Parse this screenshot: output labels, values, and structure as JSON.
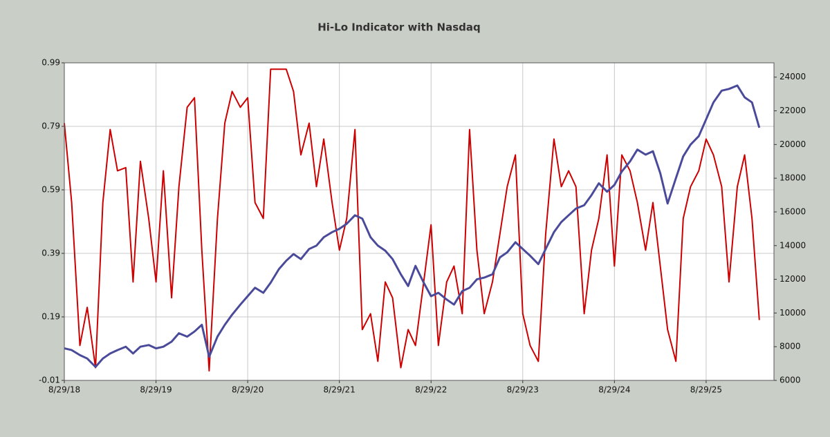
{
  "chart_data": {
    "type": "line",
    "title": "Hi-Lo Indicator with Nasdaq",
    "x": [
      2018.66,
      2018.74,
      2018.83,
      2018.91,
      2019.0,
      2019.08,
      2019.16,
      2019.24,
      2019.33,
      2019.41,
      2019.49,
      2019.58,
      2019.66,
      2019.74,
      2019.83,
      2019.91,
      2020.0,
      2020.08,
      2020.16,
      2020.24,
      2020.33,
      2020.41,
      2020.49,
      2020.58,
      2020.66,
      2020.74,
      2020.83,
      2020.91,
      2021.0,
      2021.08,
      2021.16,
      2021.24,
      2021.33,
      2021.41,
      2021.49,
      2021.58,
      2021.66,
      2021.74,
      2021.83,
      2021.91,
      2022.0,
      2022.08,
      2022.16,
      2022.24,
      2022.33,
      2022.41,
      2022.49,
      2022.58,
      2022.66,
      2022.74,
      2022.83,
      2022.91,
      2023.0,
      2023.08,
      2023.16,
      2023.24,
      2023.33,
      2023.41,
      2023.49,
      2023.58,
      2023.66,
      2023.74,
      2023.83,
      2023.91,
      2024.0,
      2024.08,
      2024.16,
      2024.24,
      2024.33,
      2024.41,
      2024.49,
      2024.58,
      2024.66,
      2024.74,
      2024.83,
      2024.91,
      2025.0,
      2025.08,
      2025.16,
      2025.24,
      2025.33,
      2025.41,
      2025.49,
      2025.58,
      2025.66,
      2025.74,
      2025.83,
      2025.91,
      2026.0,
      2026.08,
      2026.16,
      2026.24
    ],
    "series": [
      {
        "name": "Hi-Lo Indicator",
        "color": "#cc0000",
        "values": [
          0.8,
          0.55,
          0.1,
          0.22,
          0.03,
          0.55,
          0.78,
          0.65,
          0.66,
          0.3,
          0.68,
          0.5,
          0.3,
          0.65,
          0.25,
          0.6,
          0.85,
          0.88,
          0.4,
          0.02,
          0.5,
          0.8,
          0.9,
          0.85,
          0.88,
          0.55,
          0.5,
          0.97,
          0.97,
          0.97,
          0.9,
          0.7,
          0.8,
          0.6,
          0.75,
          0.55,
          0.4,
          0.5,
          0.78,
          0.15,
          0.2,
          0.05,
          0.3,
          0.25,
          0.03,
          0.15,
          0.1,
          0.3,
          0.48,
          0.1,
          0.3,
          0.35,
          0.2,
          0.78,
          0.4,
          0.2,
          0.3,
          0.45,
          0.6,
          0.7,
          0.2,
          0.1,
          0.05,
          0.45,
          0.75,
          0.6,
          0.65,
          0.6,
          0.2,
          0.4,
          0.5,
          0.7,
          0.35,
          0.7,
          0.65,
          0.55,
          0.4,
          0.55,
          0.35,
          0.15,
          0.05,
          0.5,
          0.6,
          0.65,
          0.75,
          0.7,
          0.6,
          0.3,
          0.6,
          0.7,
          0.5,
          0.18
        ]
      },
      {
        "name": "Nasdaq",
        "color": "#4a4a9a",
        "axis": "y2",
        "values": [
          7900,
          7800,
          7500,
          7300,
          6800,
          7300,
          7600,
          7800,
          8000,
          7600,
          8000,
          8100,
          7900,
          8000,
          8300,
          8800,
          8600,
          8900,
          9300,
          7400,
          8600,
          9300,
          9900,
          10500,
          11000,
          11500,
          11200,
          11800,
          12600,
          13100,
          13500,
          13200,
          13800,
          14000,
          14500,
          14800,
          15000,
          15300,
          15800,
          15600,
          14500,
          14000,
          13700,
          13200,
          12300,
          11600,
          12800,
          11800,
          11000,
          11200,
          10800,
          10500,
          11300,
          11500,
          12000,
          12100,
          12300,
          13300,
          13600,
          14200,
          13800,
          13400,
          12900,
          13800,
          14800,
          15400,
          15800,
          16200,
          16400,
          17000,
          17700,
          17200,
          17600,
          18400,
          19000,
          19700,
          19400,
          19600,
          18300,
          16500,
          18000,
          19300,
          20000,
          20500,
          21500,
          22500,
          23200,
          23300,
          23500,
          22800,
          22500,
          21000
        ]
      }
    ],
    "xlim": [
      2018.66,
      2026.4
    ],
    "xticks": [
      {
        "value": 2018.66,
        "label": "8/29/18"
      },
      {
        "value": 2019.66,
        "label": "8/29/19"
      },
      {
        "value": 2020.66,
        "label": "8/29/20"
      },
      {
        "value": 2021.66,
        "label": "8/29/21"
      },
      {
        "value": 2022.66,
        "label": "8/29/22"
      },
      {
        "value": 2023.66,
        "label": "8/29/23"
      },
      {
        "value": 2024.66,
        "label": "8/29/24"
      },
      {
        "value": 2025.66,
        "label": "8/29/25"
      }
    ],
    "ylim": [
      -0.01,
      0.99
    ],
    "yticks": [
      -0.01,
      0.19,
      0.39,
      0.59,
      0.79,
      0.99
    ],
    "y2lim": [
      6000,
      24850
    ],
    "y2ticks": [
      6000,
      8000,
      10000,
      12000,
      14000,
      16000,
      18000,
      20000,
      22000,
      24000
    ],
    "grid": true
  }
}
